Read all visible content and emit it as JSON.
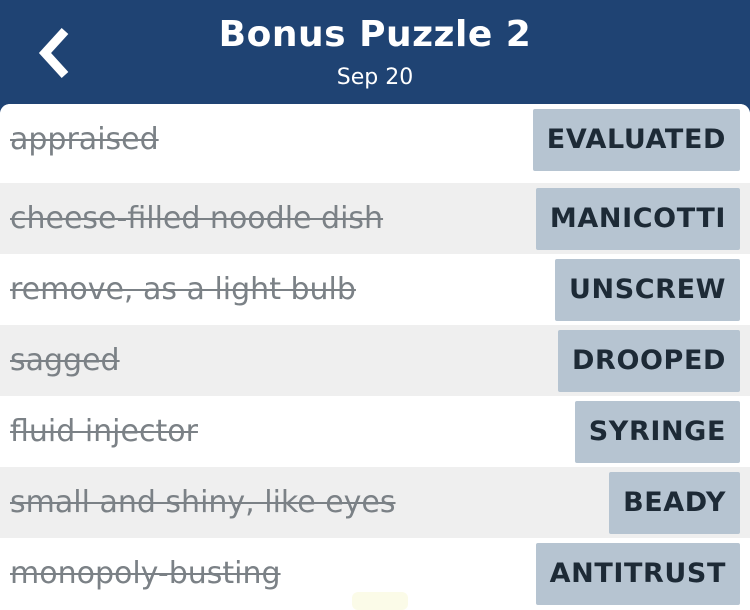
{
  "header": {
    "title": "Bonus Puzzle 2",
    "date": "Sep 20",
    "back_icon": "chevron-left-icon"
  },
  "colors": {
    "header_bg": "#1f4373",
    "answer_bg": "#b6c4d1",
    "row_alt_bg": "#efefef",
    "clue_text": "#7b8186",
    "answer_text": "#1d2a36"
  },
  "clues": [
    {
      "clue": "appraised",
      "answer": "EVALUATED"
    },
    {
      "clue": "cheese-filled noodle dish",
      "answer": "MANICOTTI"
    },
    {
      "clue": "remove, as a light bulb",
      "answer": "UNSCREW"
    },
    {
      "clue": "sagged",
      "answer": "DROOPED"
    },
    {
      "clue": "fluid injector",
      "answer": "SYRINGE"
    },
    {
      "clue": "small and shiny, like eyes",
      "answer": "BEADY"
    },
    {
      "clue": "monopoly-busting",
      "answer": "ANTITRUST"
    }
  ]
}
